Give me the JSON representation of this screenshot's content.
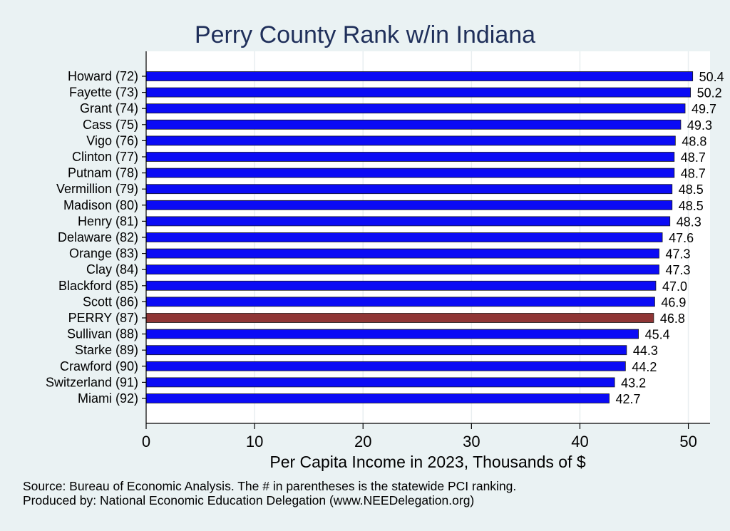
{
  "chart_data": {
    "type": "bar",
    "orientation": "horizontal",
    "title": "Perry County Rank w/in Indiana",
    "xlabel": "Per Capita Income in 2023, Thousands of $",
    "ylabel": "",
    "xlim": [
      0,
      52
    ],
    "xticks": [
      0,
      10,
      20,
      30,
      40,
      50
    ],
    "categories": [
      "Howard (72)",
      "Fayette (73)",
      "Grant (74)",
      "Cass (75)",
      "Vigo (76)",
      "Clinton (77)",
      "Putnam (78)",
      "Vermillion (79)",
      "Madison (80)",
      "Henry (81)",
      "Delaware (82)",
      "Orange (83)",
      "Clay (84)",
      "Blackford (85)",
      "Scott (86)",
      "PERRY (87)",
      "Sullivan (88)",
      "Starke (89)",
      "Crawford (90)",
      "Switzerland (91)",
      "Miami (92)"
    ],
    "values": [
      50.4,
      50.2,
      49.7,
      49.3,
      48.8,
      48.7,
      48.7,
      48.5,
      48.5,
      48.3,
      47.6,
      47.3,
      47.3,
      47.0,
      46.9,
      46.8,
      45.4,
      44.3,
      44.2,
      43.2,
      42.7
    ],
    "value_labels": [
      "50.4",
      "50.2",
      "49.7",
      "49.3",
      "48.8",
      "48.7",
      "48.7",
      "48.5",
      "48.5",
      "48.3",
      "47.6",
      "47.3",
      "47.3",
      "47.0",
      "46.9",
      "46.8",
      "45.4",
      "44.3",
      "44.2",
      "43.2",
      "42.7"
    ],
    "highlight_index": 15,
    "colors": {
      "bar": "#0b0bf5",
      "bar_edge": "#1a1a1a",
      "highlight": "#8f3535",
      "plot_bg": "#ffffff",
      "grid": "#e8eef0",
      "title": "#1f2f5a"
    },
    "grid": true
  },
  "footnotes": {
    "source": "Source: Bureau of Economic Analysis. The # in parentheses is the statewide PCI ranking.",
    "produced": "Produced by: National Economic Education Delegation (www.NEEDelegation.org)"
  }
}
